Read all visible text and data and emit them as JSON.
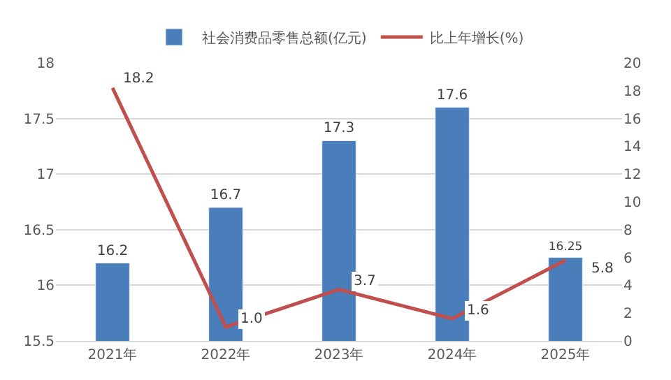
{
  "chart_data": {
    "type": "bar",
    "categories": [
      "2021年",
      "2022年",
      "2023年",
      "2024年",
      "2025年"
    ],
    "series": [
      {
        "name": "社会消费品零售总额(亿元)",
        "color": "#4a7ebb",
        "values": [
          16.2,
          16.7,
          17.3,
          17.6,
          16.25
        ],
        "value_labels": [
          "16.2",
          "16.7",
          "17.3",
          "17.6",
          "16.25"
        ]
      },
      {
        "name": "比上年增长(%)",
        "type": "line",
        "axis": "y2",
        "color": "#c0504d",
        "values": [
          18.2,
          1.0,
          3.7,
          1.6,
          5.8
        ],
        "value_labels": [
          "18.2",
          "1.0",
          "3.7",
          "1.6",
          "5.8"
        ]
      }
    ],
    "ylim": [
      15.5,
      18
    ],
    "yticks": [
      15.5,
      16,
      16.5,
      17,
      17.5,
      18
    ],
    "y2lim": [
      0,
      20
    ],
    "y2ticks": [
      0,
      2,
      4,
      6,
      8,
      10,
      12,
      14,
      16,
      18,
      20
    ],
    "grid": "y",
    "legend": "top",
    "marker": "none",
    "line_style": "solid"
  }
}
